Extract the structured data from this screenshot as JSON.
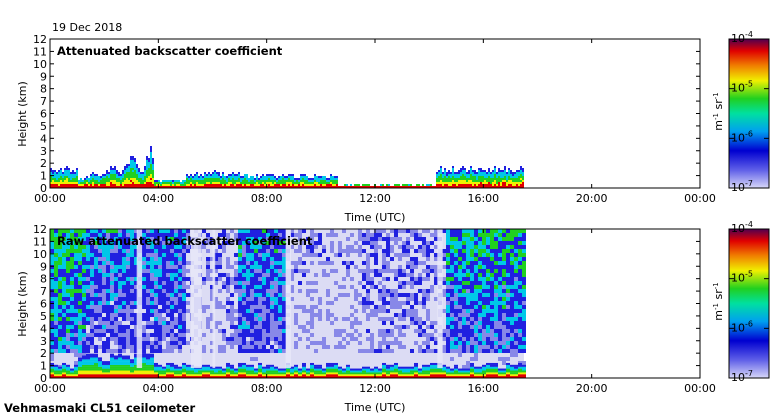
{
  "date": "19 Dec 2018",
  "footer": "Vehmasmaki CL51 ceilometer",
  "chart_data": [
    {
      "type": "heatmap",
      "title": "Attenuated backscatter coefficient",
      "xlabel": "Time (UTC)",
      "ylabel": "Height (km)",
      "x_ticks": [
        "00:00",
        "04:00",
        "08:00",
        "12:00",
        "16:00",
        "20:00",
        "00:00"
      ],
      "y_ticks": [
        "0",
        "1",
        "2",
        "3",
        "4",
        "5",
        "6",
        "7",
        "8",
        "9",
        "10",
        "11",
        "12"
      ],
      "xlim_hours": [
        0,
        24
      ],
      "ylim_km": [
        0,
        12
      ],
      "data_end_hour": 17.5,
      "colorbar": {
        "scale": "log",
        "range": [
          1e-07,
          0.0001
        ],
        "tick_labels": [
          [
            "10",
            "-4"
          ],
          [
            "10",
            "-5"
          ],
          [
            "10",
            "-6"
          ],
          [
            "10",
            "-7"
          ]
        ],
        "unit_base": [
          "m",
          "sr"
        ],
        "unit_exp": [
          "-1",
          "-1"
        ]
      },
      "features": [
        {
          "kind": "layer",
          "start_hour": 0.0,
          "end_hour": 1.0,
          "top_km": 1.8
        },
        {
          "kind": "layer",
          "start_hour": 1.0,
          "end_hour": 3.8,
          "top_km": 3.6
        },
        {
          "kind": "layer",
          "start_hour": 3.8,
          "end_hour": 5.0,
          "top_km": 0.7
        },
        {
          "kind": "layer",
          "start_hour": 5.0,
          "end_hour": 7.0,
          "top_km": 1.4
        },
        {
          "kind": "layer",
          "start_hour": 7.0,
          "end_hour": 10.6,
          "top_km": 1.2
        },
        {
          "kind": "layer",
          "start_hour": 10.6,
          "end_hour": 14.2,
          "top_km": 0.3
        },
        {
          "kind": "layer",
          "start_hour": 14.2,
          "end_hour": 17.5,
          "top_km": 1.8
        }
      ]
    },
    {
      "type": "heatmap",
      "title": "Raw attenuated backscatter coefficient",
      "xlabel": "Time (UTC)",
      "ylabel": "Height (km)",
      "x_ticks": [
        "00:00",
        "04:00",
        "08:00",
        "12:00",
        "16:00",
        "20:00",
        "00:00"
      ],
      "y_ticks": [
        "0",
        "1",
        "2",
        "3",
        "4",
        "5",
        "6",
        "7",
        "8",
        "9",
        "10",
        "11",
        "12"
      ],
      "xlim_hours": [
        0,
        24
      ],
      "ylim_km": [
        0,
        12
      ],
      "data_end_hour": 17.5,
      "colorbar": {
        "scale": "log",
        "range": [
          1e-07,
          0.0001
        ],
        "tick_labels": [
          [
            "10",
            "-4"
          ],
          [
            "10",
            "-5"
          ],
          [
            "10",
            "-6"
          ],
          [
            "10",
            "-7"
          ]
        ],
        "unit_base": [
          "m",
          "sr"
        ],
        "unit_exp": [
          "-1",
          "-1"
        ]
      }
    }
  ],
  "colors": {
    "low": "#c8c8f0",
    "blue": "#2020e0",
    "cyan": "#00c8e8",
    "green": "#20d020",
    "yellow": "#f0f000",
    "orange": "#f08000",
    "red": "#e00000",
    "purple": "#600060"
  }
}
